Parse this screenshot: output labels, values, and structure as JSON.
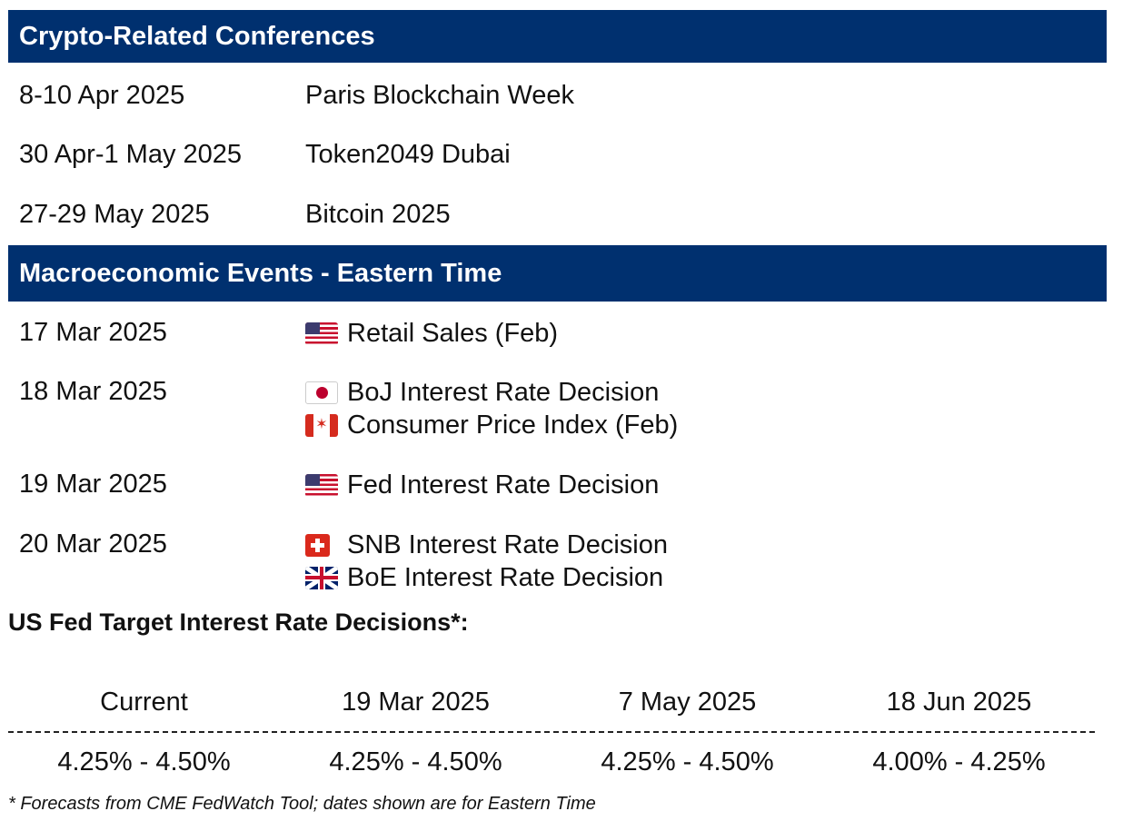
{
  "conferences": {
    "heading": "Crypto-Related Conferences",
    "items": [
      {
        "date": "8-10 Apr 2025",
        "name": "Paris Blockchain Week"
      },
      {
        "date": "30 Apr-1 May 2025",
        "name": "Token2049 Dubai"
      },
      {
        "date": "27-29 May 2025",
        "name": "Bitcoin 2025"
      }
    ]
  },
  "macro": {
    "heading": "Macroeconomic Events - Eastern Time",
    "days": [
      {
        "date": "17 Mar 2025",
        "events": [
          {
            "flag": "us-flag-icon",
            "name": "Retail Sales (Feb)"
          }
        ]
      },
      {
        "date": "18 Mar 2025",
        "events": [
          {
            "flag": "japan-flag-icon",
            "name": "BoJ Interest Rate Decision"
          },
          {
            "flag": "canada-flag-icon",
            "name": "Consumer Price Index (Feb)"
          }
        ]
      },
      {
        "date": "19 Mar 2025",
        "events": [
          {
            "flag": "us-flag-icon",
            "name": "Fed Interest Rate Decision"
          }
        ]
      },
      {
        "date": "20 Mar 2025",
        "events": [
          {
            "flag": "switzerland-flag-icon",
            "name": "SNB Interest Rate Decision"
          },
          {
            "flag": "uk-flag-icon",
            "name": "BoE Interest Rate Decision"
          }
        ]
      }
    ]
  },
  "fed": {
    "title": "US Fed Target Interest Rate Decisions*:",
    "headers": [
      "Current",
      "19 Mar 2025",
      "7 May 2025",
      "18 Jun 2025"
    ],
    "values": [
      "4.25% - 4.50%",
      "4.25% - 4.50%",
      "4.25% - 4.50%",
      "4.00% - 4.25%"
    ],
    "footnote": "* Forecasts from CME FedWatch Tool; dates shown are for Eastern Time"
  },
  "colors": {
    "band": "#00306f",
    "band_text": "#ffffff"
  }
}
